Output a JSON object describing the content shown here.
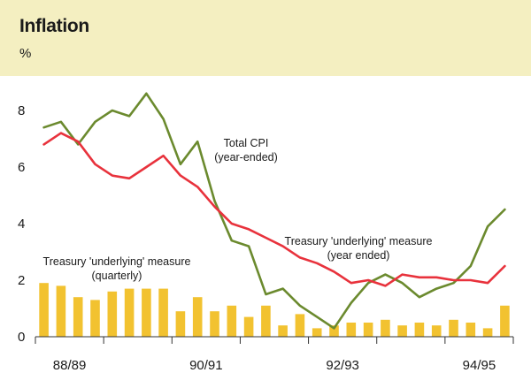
{
  "title": "Inflation",
  "unit_label": "%",
  "colors": {
    "header_bg": "#f4efc1",
    "total_cpi": "#6b8a2e",
    "underlying_year_ended": "#e8323c",
    "underlying_quarterly": "#f2c230"
  },
  "annotations": {
    "total_cpi": [
      "Total CPI",
      "(year-ended)"
    ],
    "underlying_year": [
      "Treasury 'underlying' measure",
      "(year ended)"
    ],
    "underlying_quarterly": [
      "Treasury 'underlying' measure",
      "(quarterly)"
    ]
  },
  "chart_data": {
    "type": "line+bar",
    "title": "Inflation",
    "ylabel": "%",
    "ylim": [
      0,
      8
    ],
    "yticks": [
      0,
      2,
      4,
      6,
      8
    ],
    "x_tick_labels": [
      "88/89",
      "90/91",
      "92/93",
      "94/95"
    ],
    "quarters": 28,
    "series": [
      {
        "name": "Total CPI (year-ended)",
        "type": "line",
        "values": [
          7.4,
          7.6,
          6.8,
          7.6,
          8.0,
          7.8,
          8.6,
          7.7,
          6.1,
          6.9,
          4.8,
          3.4,
          3.2,
          1.5,
          1.7,
          1.1,
          0.7,
          0.3,
          1.2,
          1.9,
          2.2,
          1.9,
          1.4,
          1.7,
          1.9,
          2.5,
          3.9,
          4.5
        ]
      },
      {
        "name": "Treasury 'underlying' measure (year ended)",
        "type": "line",
        "values": [
          6.8,
          7.2,
          6.9,
          6.1,
          5.7,
          5.6,
          6.0,
          6.4,
          5.7,
          5.3,
          4.6,
          4.0,
          3.8,
          3.5,
          3.2,
          2.8,
          2.6,
          2.3,
          1.9,
          2.0,
          1.8,
          2.2,
          2.1,
          2.1,
          2.0,
          2.0,
          1.9,
          2.5
        ]
      },
      {
        "name": "Treasury 'underlying' measure (quarterly)",
        "type": "bar",
        "values": [
          1.9,
          1.8,
          1.4,
          1.3,
          1.6,
          1.7,
          1.7,
          1.7,
          0.9,
          1.4,
          0.9,
          1.1,
          0.7,
          1.1,
          0.4,
          0.8,
          0.3,
          0.4,
          0.5,
          0.5,
          0.6,
          0.4,
          0.5,
          0.4,
          0.6,
          0.5,
          0.3,
          1.1
        ]
      }
    ]
  }
}
